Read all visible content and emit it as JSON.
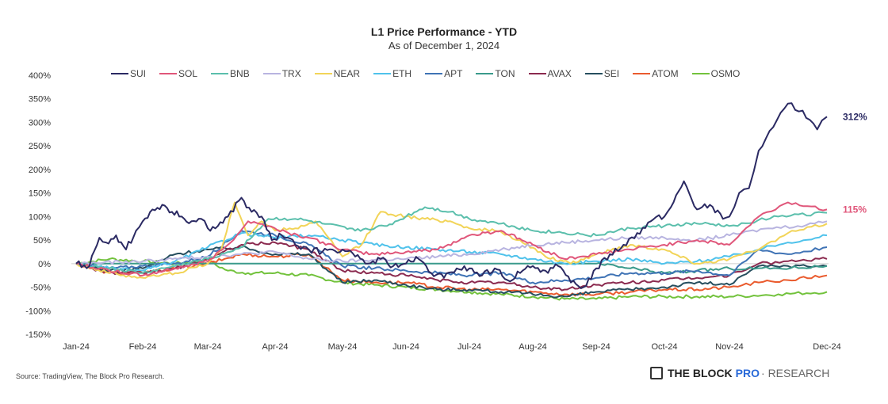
{
  "chart_data": {
    "type": "line",
    "title": "L1 Price Performance - YTD",
    "subtitle": "As of December 1, 2024",
    "xlabel": "",
    "ylabel": "",
    "ylim": [
      -150,
      400
    ],
    "yticks": [
      400,
      350,
      300,
      250,
      200,
      150,
      100,
      50,
      0,
      -50,
      -100,
      -150
    ],
    "ytick_labels": [
      "400%",
      "350%",
      "300%",
      "250%",
      "200%",
      "150%",
      "100%",
      "50%",
      "0%",
      "-50%",
      "-100%",
      "-150%"
    ],
    "xticks": [
      "Jan-24",
      "Feb-24",
      "Mar-24",
      "Apr-24",
      "May-24",
      "Jun-24",
      "Jul-24",
      "Aug-24",
      "Sep-24",
      "Oct-24",
      "Nov-24",
      "Dec-24"
    ],
    "x_unit": "months since Jan-24",
    "grid": false,
    "legend": "top",
    "zero_line": true,
    "annotations": [
      {
        "series": "SUI",
        "text": "312%",
        "color": "#2b2a63"
      },
      {
        "series": "SOL",
        "text": "115%",
        "color": "#e0567a"
      }
    ],
    "series": [
      {
        "name": "SUI",
        "color": "#2b2a63",
        "x": [
          0,
          0.2,
          0.35,
          0.45,
          0.6,
          0.75,
          0.9,
          1.0,
          1.15,
          1.3,
          1.45,
          1.6,
          1.75,
          1.9,
          2.0,
          2.15,
          2.3,
          2.5,
          2.65,
          2.8,
          2.95,
          3.1,
          3.3,
          3.5,
          3.7,
          3.85,
          4.0,
          4.2,
          4.4,
          4.6,
          4.8,
          5.0,
          5.2,
          5.4,
          5.6,
          5.8,
          6.0,
          6.2,
          6.4,
          6.6,
          6.8,
          7.0,
          7.2,
          7.4,
          7.6,
          7.8,
          8.0,
          8.2,
          8.4,
          8.6,
          8.8,
          9.0,
          9.1,
          9.3,
          9.5,
          9.7,
          9.9,
          10.0,
          10.1,
          10.2,
          10.3,
          10.45,
          10.6,
          10.75,
          10.9,
          11.0
        ],
        "values": [
          0,
          -5,
          55,
          45,
          60,
          30,
          70,
          90,
          115,
          125,
          110,
          100,
          90,
          95,
          75,
          80,
          100,
          140,
          110,
          100,
          50,
          60,
          40,
          30,
          25,
          30,
          30,
          15,
          0,
          10,
          -5,
          0,
          10,
          -20,
          -30,
          -10,
          -10,
          -25,
          -10,
          -35,
          -20,
          -5,
          -15,
          -5,
          -40,
          -50,
          -10,
          20,
          40,
          65,
          90,
          100,
          120,
          175,
          115,
          125,
          95,
          100,
          150,
          160,
          240,
          290,
          340,
          325,
          285,
          312
        ]
      },
      {
        "name": "SOL",
        "color": "#e0567a",
        "x": [
          0,
          0.5,
          1.0,
          1.5,
          2.0,
          2.3,
          2.6,
          2.9,
          3.2,
          3.5,
          4.0,
          4.5,
          5.0,
          5.5,
          6.0,
          6.5,
          7.0,
          7.5,
          8.0,
          8.5,
          9.0,
          9.5,
          10.0,
          10.3,
          10.6,
          11.0
        ],
        "values": [
          0,
          -15,
          -25,
          -10,
          5,
          40,
          90,
          80,
          65,
          55,
          30,
          20,
          25,
          30,
          60,
          70,
          40,
          10,
          20,
          30,
          40,
          50,
          40,
          100,
          130,
          115
        ]
      },
      {
        "name": "BNB",
        "color": "#5bbfac",
        "x": [
          0,
          0.5,
          1.0,
          1.5,
          2.0,
          2.5,
          2.9,
          3.3,
          3.7,
          4.2,
          4.7,
          5.0,
          5.3,
          5.7,
          6.0,
          6.5,
          7.0,
          7.5,
          8.0,
          8.5,
          9.0,
          9.5,
          10.0,
          10.5,
          11.0
        ],
        "values": [
          0,
          -10,
          -20,
          -5,
          10,
          35,
          95,
          95,
          85,
          70,
          80,
          100,
          120,
          110,
          95,
          85,
          70,
          65,
          60,
          75,
          80,
          85,
          80,
          100,
          108
        ]
      },
      {
        "name": "TRX",
        "color": "#b8b4e0",
        "x": [
          0,
          1,
          2,
          2.5,
          3.0,
          3.5,
          4.0,
          4.5,
          5,
          5.5,
          6.0,
          6.5,
          7,
          7.5,
          8,
          8.5,
          9,
          9.5,
          10,
          10.4,
          10.7,
          11
        ],
        "values": [
          0,
          5,
          15,
          20,
          25,
          10,
          5,
          8,
          10,
          15,
          20,
          30,
          40,
          45,
          50,
          55,
          55,
          50,
          60,
          75,
          80,
          90
        ]
      },
      {
        "name": "NEAR",
        "color": "#f2d458",
        "x": [
          0,
          0.5,
          1.0,
          1.5,
          2.0,
          2.2,
          2.4,
          2.6,
          2.8,
          3.0,
          3.3,
          3.6,
          4.0,
          4.3,
          4.6,
          5.0,
          5.3,
          5.7,
          6.0,
          6.4,
          6.8,
          7.2,
          7.6,
          8.0,
          8.5,
          9.0,
          9.5,
          10.0,
          10.3,
          10.6,
          11.0
        ],
        "values": [
          0,
          -20,
          -30,
          -20,
          0,
          30,
          130,
          60,
          90,
          70,
          75,
          90,
          15,
          40,
          110,
          100,
          95,
          90,
          75,
          70,
          50,
          15,
          0,
          20,
          40,
          30,
          0,
          10,
          30,
          65,
          85
        ]
      },
      {
        "name": "ETH",
        "color": "#4fc2eb",
        "x": [
          0,
          0.5,
          1.0,
          1.5,
          2.0,
          2.5,
          3.0,
          3.5,
          4.0,
          4.5,
          5.0,
          5.5,
          6.0,
          6.5,
          7.0,
          7.5,
          8.0,
          8.5,
          9.0,
          9.5,
          10.0,
          10.3,
          10.6,
          11.0
        ],
        "values": [
          0,
          -10,
          -15,
          5,
          35,
          65,
          55,
          60,
          50,
          40,
          35,
          30,
          25,
          20,
          10,
          0,
          5,
          10,
          0,
          5,
          15,
          30,
          45,
          60
        ]
      },
      {
        "name": "APT",
        "color": "#3f73b5",
        "x": [
          0,
          0.5,
          1.0,
          1.5,
          2.0,
          2.5,
          3.0,
          3.5,
          4.0,
          4.5,
          5.0,
          5.5,
          6.0,
          6.5,
          7.0,
          7.5,
          8.0,
          8.5,
          9.0,
          9.5,
          10.0,
          10.3,
          10.6,
          11.0
        ],
        "values": [
          0,
          -10,
          -5,
          0,
          15,
          70,
          60,
          40,
          -5,
          -10,
          -15,
          -20,
          -25,
          -20,
          -40,
          -35,
          -30,
          -20,
          -20,
          -15,
          -25,
          30,
          20,
          35
        ]
      },
      {
        "name": "TON",
        "color": "#3a9a8b",
        "x": [
          0,
          0.5,
          1,
          1.5,
          2,
          2.5,
          3,
          4,
          5,
          6,
          7,
          8,
          8.5,
          9,
          9.5,
          10,
          10.5,
          11
        ],
        "values": [
          0,
          0,
          0,
          0,
          0,
          0,
          0,
          0,
          0,
          0,
          0,
          0,
          -10,
          -20,
          -15,
          -10,
          -10,
          -5
        ]
      },
      {
        "name": "AVAX",
        "color": "#8b2a4f",
        "x": [
          0,
          0.5,
          1.0,
          1.5,
          2.0,
          2.5,
          3.0,
          3.5,
          4.0,
          4.5,
          5.0,
          5.5,
          6.0,
          6.5,
          7.0,
          7.5,
          8.0,
          8.5,
          9.0,
          9.5,
          10.0,
          10.3,
          10.6,
          11.0
        ],
        "values": [
          0,
          -20,
          -20,
          -10,
          10,
          40,
          45,
          30,
          -15,
          -20,
          -25,
          -35,
          -40,
          -40,
          -50,
          -55,
          -45,
          -40,
          -35,
          -30,
          -25,
          0,
          5,
          10
        ]
      },
      {
        "name": "SEI",
        "color": "#264e5e",
        "x": [
          0,
          0.5,
          1.0,
          1.5,
          2.0,
          2.5,
          3.0,
          3.5,
          4.0,
          4.5,
          5.0,
          5.5,
          6.0,
          6.5,
          7.0,
          7.5,
          8.0,
          8.5,
          9.0,
          9.5,
          10.0,
          10.3,
          10.6,
          11.0
        ],
        "values": [
          0,
          -15,
          -10,
          20,
          30,
          35,
          20,
          20,
          -40,
          -35,
          -45,
          -55,
          -55,
          -60,
          -65,
          -70,
          -60,
          -55,
          -50,
          -40,
          -45,
          -5,
          -5,
          -5
        ]
      },
      {
        "name": "ATOM",
        "color": "#ea5b2e",
        "x": [
          0,
          0.5,
          1.0,
          1.5,
          2.0,
          2.5,
          3.0,
          3.5,
          4.0,
          4.5,
          5.0,
          5.5,
          6.0,
          6.5,
          7.0,
          7.5,
          8.0,
          8.5,
          9.0,
          9.5,
          10.0,
          10.3,
          10.6,
          11.0
        ],
        "values": [
          0,
          -20,
          -20,
          -10,
          0,
          20,
          15,
          20,
          -35,
          -40,
          -40,
          -50,
          -55,
          -55,
          -60,
          -65,
          -65,
          -60,
          -55,
          -55,
          -50,
          -40,
          -35,
          -25
        ]
      },
      {
        "name": "OSMO",
        "color": "#72c23c",
        "x": [
          0,
          0.5,
          1.0,
          1.5,
          2.0,
          2.3,
          2.6,
          3.0,
          3.5,
          4.0,
          4.5,
          5.0,
          5.5,
          6.0,
          6.5,
          7.0,
          7.5,
          8.0,
          8.5,
          9.0,
          9.5,
          10.0,
          10.5,
          11.0
        ],
        "values": [
          0,
          10,
          5,
          0,
          5,
          -15,
          -20,
          -20,
          -25,
          -40,
          -45,
          -50,
          -55,
          -60,
          -65,
          -70,
          -75,
          -75,
          -70,
          -70,
          -70,
          -70,
          -65,
          -60
        ]
      }
    ]
  },
  "footer": {
    "source": "Source: TradingView, The Block Pro Research.",
    "brand_main": "THE BLOCK",
    "brand_pro": "PRO",
    "brand_research": "· RESEARCH"
  }
}
